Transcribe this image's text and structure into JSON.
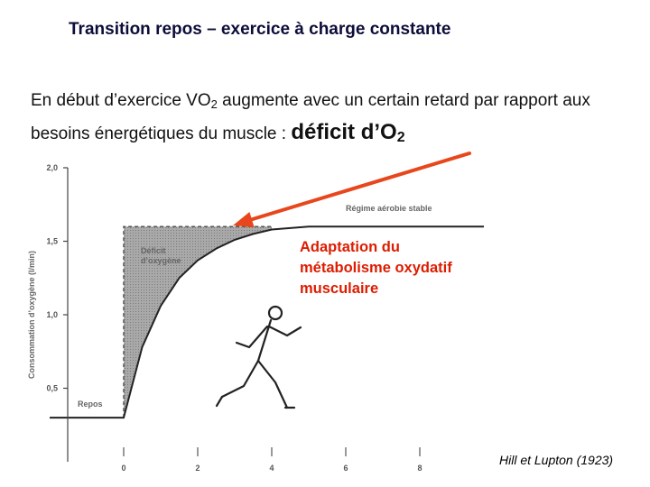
{
  "slide": {
    "title": "Transition repos – exercice à charge constante",
    "intro_part1": "En début d’exercice VO",
    "intro_sub": "2",
    "intro_part2": " augmente avec un certain retard par rapport aux besoins énergétiques du muscle : ",
    "intro_emph": "déficit d’O",
    "intro_emph_sub": "2",
    "annotation": "Adaptation du métabolisme oxydatif musculaire",
    "credit": "Hill et Lupton (1923)"
  },
  "colors": {
    "title": "#0d0d3a",
    "arrow": "#e8461c",
    "annotation": "#dd1c00",
    "deficit_fill": "#9a9a9a",
    "curve": "#222222"
  },
  "chart_data": {
    "type": "area",
    "ylabel": "Consommation d’oxygène (l/min)",
    "xlabel": "",
    "x_ticks": [
      "0",
      "2",
      "4",
      "6",
      "8"
    ],
    "y_ticks": [
      "0,5",
      "1,0",
      "1,5",
      "2,0"
    ],
    "xlim": [
      -2,
      10
    ],
    "ylim": [
      0,
      2.0
    ],
    "rest_level": 0.3,
    "steady_level": 1.6,
    "exercise_start": 0,
    "series": [
      {
        "x": [
          -2,
          0,
          0.5,
          1,
          1.5,
          2,
          2.5,
          3,
          3.5,
          4,
          5,
          6,
          7,
          8,
          10
        ],
        "values": [
          0.3,
          0.3,
          0.78,
          1.06,
          1.25,
          1.37,
          1.45,
          1.51,
          1.55,
          1.58,
          1.6,
          1.6,
          1.6,
          1.6,
          1.6
        ]
      }
    ],
    "annotations": {
      "deficit": [
        "Déficit",
        "d’oxygène"
      ],
      "steady": "Régime aérobie stable",
      "rest": "Repos"
    }
  }
}
